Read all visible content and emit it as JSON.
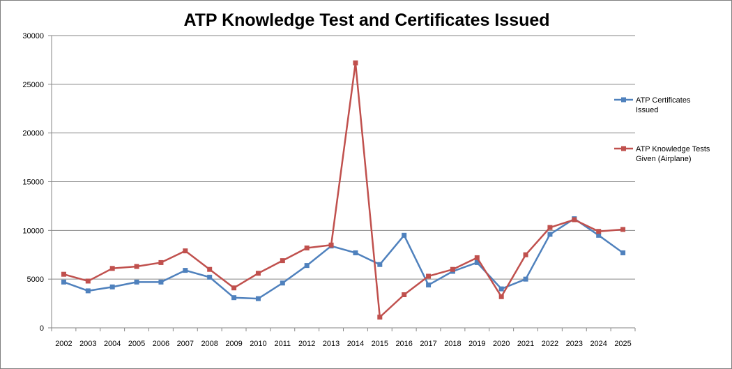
{
  "chart_data": {
    "type": "line",
    "title": "ATP Knowledge Test and Certificates Issued",
    "xlabel": "",
    "ylabel": "",
    "categories": [
      "2002",
      "2003",
      "2004",
      "2005",
      "2006",
      "2007",
      "2008",
      "2009",
      "2010",
      "2011",
      "2012",
      "2013",
      "2014",
      "2015",
      "2016",
      "2017",
      "2018",
      "2019",
      "2020",
      "2021",
      "2022",
      "2023",
      "2024",
      "2025"
    ],
    "ylim": [
      0,
      30000
    ],
    "yticks": [
      0,
      5000,
      10000,
      15000,
      20000,
      25000,
      30000
    ],
    "grid": true,
    "legend": "right",
    "series": [
      {
        "name": "ATP Certificates Issued",
        "color": "#4F81BD",
        "values": [
          4700,
          3800,
          4200,
          4700,
          4700,
          5900,
          5200,
          3100,
          3000,
          4600,
          6400,
          8400,
          7700,
          6500,
          9500,
          4400,
          5800,
          6700,
          4000,
          5000,
          9600,
          11200,
          9500,
          7700
        ]
      },
      {
        "name": "ATP Knowledge Tests Given (Airplane)",
        "color": "#C0504D",
        "values": [
          5500,
          4800,
          6100,
          6300,
          6700,
          7900,
          6000,
          4100,
          5600,
          6900,
          8200,
          8500,
          27200,
          1100,
          3400,
          5300,
          6000,
          7200,
          3200,
          7500,
          10300,
          11100,
          9900,
          10100
        ]
      }
    ]
  }
}
